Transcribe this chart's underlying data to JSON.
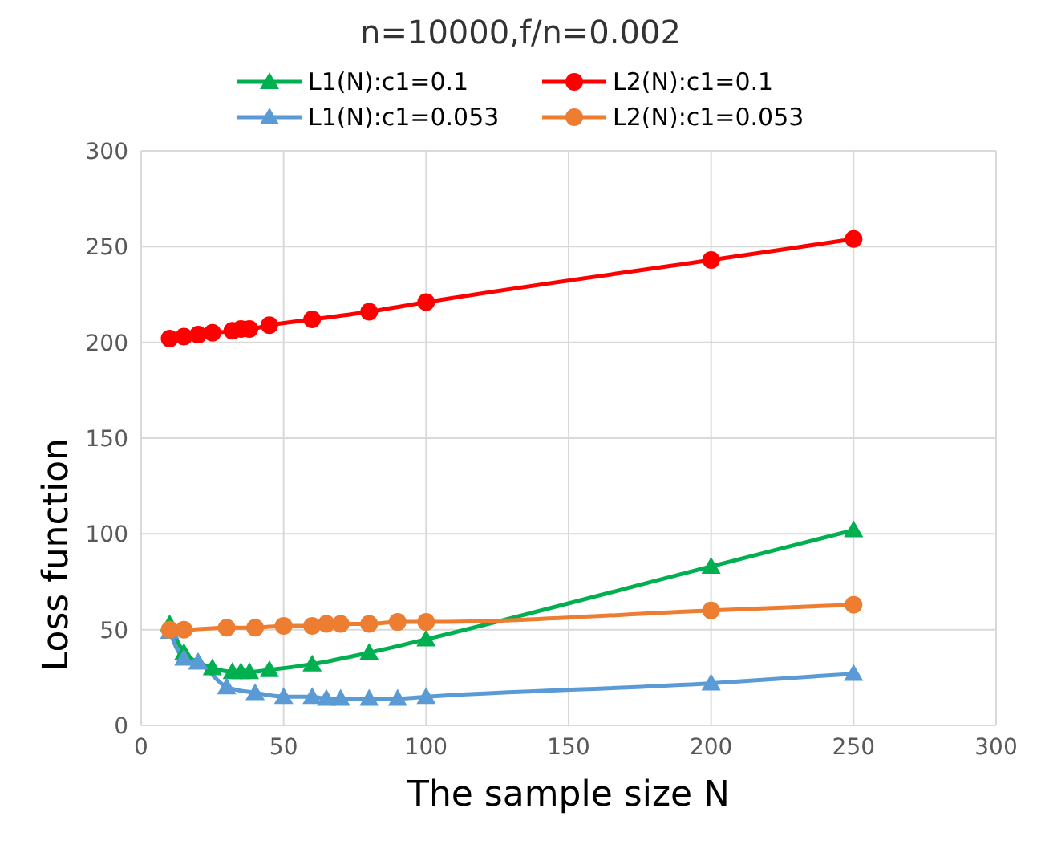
{
  "chart_data": {
    "type": "line",
    "title": "n=10000,f/n=0.002",
    "xlabel": "The sample size N",
    "ylabel": "Loss function",
    "xlim": [
      0,
      300
    ],
    "xticks": [
      0,
      50,
      100,
      150,
      200,
      250,
      300
    ],
    "ylim": [
      0,
      300
    ],
    "yticks": [
      0,
      50,
      100,
      150,
      200,
      250,
      300
    ],
    "grid": true,
    "legend": "top",
    "line_style": "solid",
    "series": [
      {
        "name": "L1(N):c1=0.1",
        "color": "#00b050",
        "marker": "triangle",
        "x": [
          10,
          15,
          20,
          25,
          32,
          35,
          38,
          45,
          60,
          80,
          100,
          200,
          250
        ],
        "values": [
          53,
          38,
          33,
          30,
          28,
          28,
          28,
          29,
          32,
          38,
          45,
          83,
          102
        ]
      },
      {
        "name": "L2(N):c1=0.1",
        "color": "#ff0000",
        "marker": "circle",
        "x": [
          10,
          15,
          20,
          25,
          32,
          35,
          38,
          45,
          60,
          80,
          100,
          200,
          250
        ],
        "values": [
          202,
          203,
          204,
          205,
          206,
          207,
          207,
          209,
          212,
          216,
          221,
          243,
          254
        ]
      },
      {
        "name": "L1(N):c1=0.053",
        "color": "#5b9bd5",
        "marker": "triangle",
        "x": [
          10,
          15,
          20,
          30,
          40,
          50,
          60,
          65,
          70,
          80,
          90,
          100,
          200,
          250
        ],
        "values": [
          49,
          35,
          33,
          20,
          17,
          15,
          15,
          14,
          14,
          14,
          14,
          15,
          22,
          27
        ]
      },
      {
        "name": "L2(N):c1=0.053",
        "color": "#ed7d31",
        "marker": "circle",
        "x": [
          10,
          15,
          30,
          40,
          50,
          60,
          65,
          70,
          80,
          90,
          100,
          200,
          250
        ],
        "values": [
          50,
          50,
          51,
          51,
          52,
          52,
          53,
          53,
          53,
          54,
          54,
          60,
          63
        ]
      }
    ]
  }
}
